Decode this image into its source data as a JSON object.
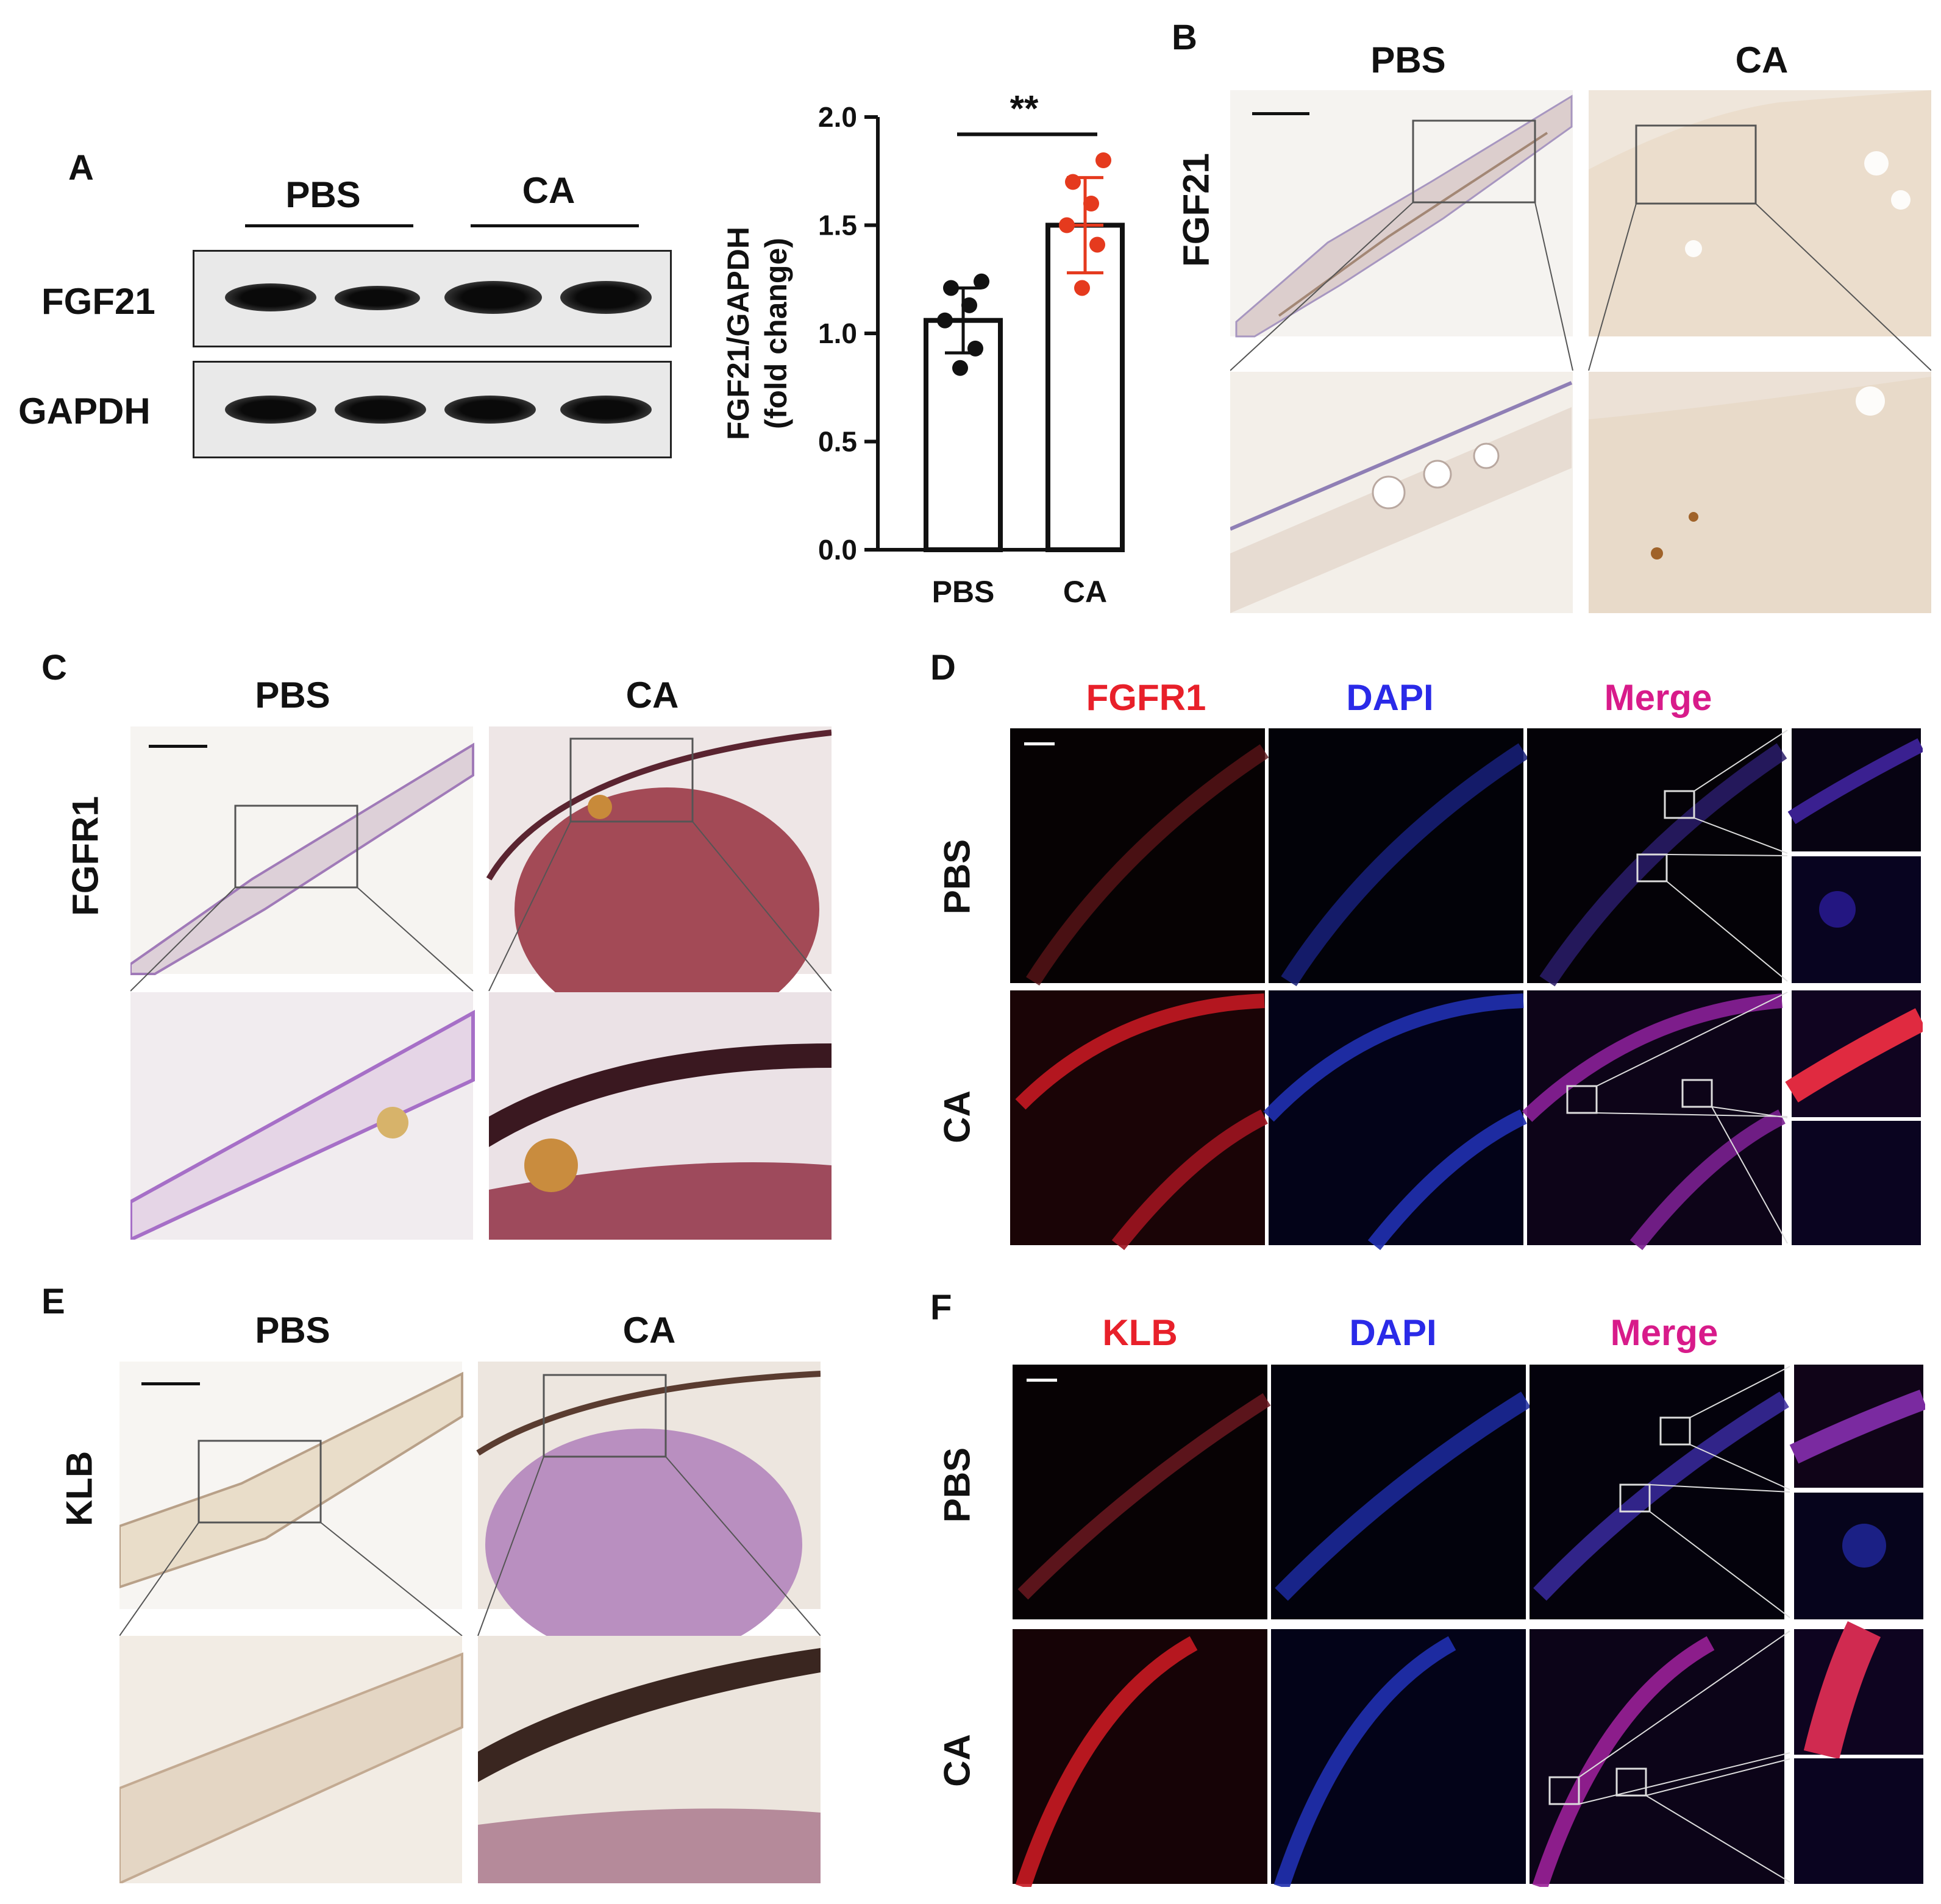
{
  "panel_letters": {
    "a": "A",
    "b": "B",
    "c": "C",
    "d": "D",
    "e": "E",
    "f": "F"
  },
  "panel_a": {
    "groups": [
      "PBS",
      "CA"
    ],
    "blot_labels": [
      "FGF21",
      "GAPDH"
    ]
  },
  "chart_data": {
    "type": "bar",
    "categories": [
      "PBS",
      "CA"
    ],
    "values": [
      1.06,
      1.5
    ],
    "error": [
      0.15,
      0.22
    ],
    "points": [
      [
        1.24,
        1.21,
        1.13,
        1.06,
        0.93,
        0.84
      ],
      [
        1.8,
        1.7,
        1.6,
        1.5,
        1.41,
        1.21
      ]
    ],
    "ylabel": "FGF21/GAPDH",
    "ylabel2": "(fold change)",
    "yticks": [
      "0.0",
      "0.5",
      "1.0",
      "1.5",
      "2.0"
    ],
    "ylim": [
      0,
      2.0
    ],
    "significance": "**",
    "colors": {
      "PBS": "#111111",
      "CA": "#e53a1e"
    }
  },
  "panel_b": {
    "groups": [
      "PBS",
      "CA"
    ],
    "row_label": "FGF21"
  },
  "panel_c": {
    "groups": [
      "PBS",
      "CA"
    ],
    "row_label": "FGFR1"
  },
  "panel_d": {
    "channels": [
      "FGFR1",
      "DAPI",
      "Merge"
    ],
    "rows": [
      "PBS",
      "CA"
    ],
    "channel_colors": [
      "#e8202a",
      "#2a2ae8",
      "#d81b8a"
    ]
  },
  "panel_e": {
    "groups": [
      "PBS",
      "CA"
    ],
    "row_label": "KLB"
  },
  "panel_f": {
    "channels": [
      "KLB",
      "DAPI",
      "Merge"
    ],
    "rows": [
      "PBS",
      "CA"
    ],
    "channel_colors": [
      "#e8202a",
      "#2a2ae8",
      "#d81b8a"
    ]
  }
}
